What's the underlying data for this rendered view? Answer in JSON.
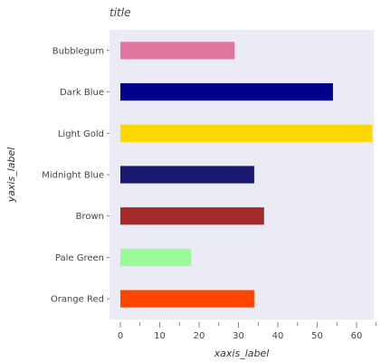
{
  "chart_data": {
    "type": "bar",
    "orientation": "horizontal",
    "title": "title",
    "xlabel": "xaxis_label",
    "ylabel": "yaxis_label",
    "categories": [
      "Orange Red",
      "Pale Green",
      "Brown",
      "Midnight Blue",
      "Light Gold",
      "Dark Blue",
      "Bubblegum"
    ],
    "values": [
      34,
      18,
      36.5,
      34,
      64,
      54,
      29
    ],
    "colors": [
      "#ff4500",
      "#98fb98",
      "#a52a2a",
      "#191970",
      "#ffd700",
      "#00008b",
      "#e0759e"
    ],
    "xlim": [
      0,
      65
    ],
    "xticks": [
      "0",
      "10",
      "20",
      "30",
      "40",
      "50",
      "60"
    ],
    "grid": false,
    "background": "#ebebf5"
  }
}
